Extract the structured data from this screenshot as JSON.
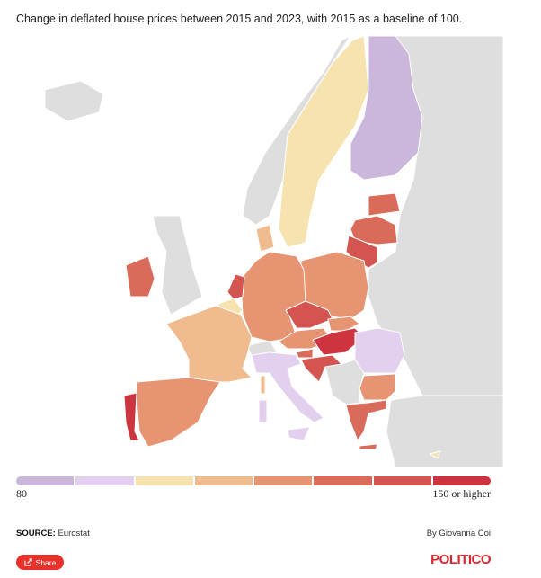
{
  "title": "Change in deflated house prices between 2015 and 2023, with 2015 as a baseline of 100.",
  "legend": {
    "min_label": "80",
    "max_label": "150 or higher",
    "colors": [
      "#cbb6dc",
      "#e2d0ee",
      "#f6e3b0",
      "#f0bb8f",
      "#e69472",
      "#da6b5a",
      "#d45450",
      "#cc343f"
    ]
  },
  "no_data_color": "#dedede",
  "country_class": {
    "sweden": 2,
    "finland": 0,
    "estonia": 5,
    "latvia": 5,
    "lithuania": 6,
    "poland": 4,
    "germany": 4,
    "denmark": 3,
    "netherlands": 6,
    "belgium": 2,
    "france": 3,
    "corsica": 3,
    "spain": 4,
    "portugal": 7,
    "ireland": 5,
    "czechia": 6,
    "austria": 4,
    "slovakia": 4,
    "hungary": 7,
    "slovenia": 5,
    "croatia": 6,
    "italy": 1,
    "sicily": 1,
    "sardinia": 1,
    "romania": 1,
    "bulgaria": 4,
    "greece": 5,
    "crete": 5,
    "cyprus": 2
  },
  "footer": {
    "source_label": "SOURCE:",
    "source": "Eurostat",
    "byline": "By Giovanna Coi",
    "share_label": "Share",
    "brand": "POLITICO"
  }
}
